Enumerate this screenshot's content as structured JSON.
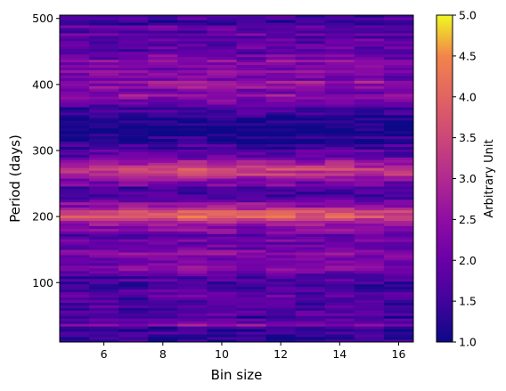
{
  "chart_data": {
    "type": "heatmap",
    "title": "",
    "xlabel": "Bin size",
    "ylabel": "Period (days)",
    "x": [
      5,
      6,
      7,
      8,
      9,
      10,
      11,
      12,
      13,
      14,
      15,
      16
    ],
    "xlim": [
      4.5,
      16.5
    ],
    "ylim": [
      10,
      505
    ],
    "xticks": [
      6,
      8,
      10,
      12,
      14,
      16
    ],
    "yticks": [
      100,
      200,
      300,
      400,
      500
    ],
    "colormap": "plasma",
    "colorbar": {
      "label": "Arbitrary Unit",
      "range": [
        1.0,
        5.0
      ],
      "ticks": [
        "1.0",
        "1.5",
        "2.0",
        "2.5",
        "3.0",
        "3.5",
        "4.0",
        "4.5",
        "5.0"
      ],
      "tick_values": [
        1.0,
        1.5,
        2.0,
        2.5,
        3.0,
        3.5,
        4.0,
        4.5,
        5.0
      ]
    },
    "period_profile": [
      [
        10,
        1.3
      ],
      [
        40,
        1.5
      ],
      [
        60,
        1.4
      ],
      [
        80,
        1.6
      ],
      [
        100,
        1.5
      ],
      [
        115,
        1.9
      ],
      [
        125,
        2.0
      ],
      [
        135,
        2.1
      ],
      [
        150,
        1.8
      ],
      [
        165,
        1.7
      ],
      [
        180,
        2.0
      ],
      [
        190,
        2.5
      ],
      [
        200,
        3.6
      ],
      [
        205,
        3.4
      ],
      [
        215,
        2.4
      ],
      [
        230,
        1.6
      ],
      [
        245,
        1.7
      ],
      [
        255,
        2.4
      ],
      [
        262,
        2.8
      ],
      [
        272,
        3.1
      ],
      [
        280,
        2.6
      ],
      [
        292,
        2.0
      ],
      [
        305,
        1.5
      ],
      [
        320,
        1.2
      ],
      [
        345,
        1.1
      ],
      [
        360,
        1.3
      ],
      [
        380,
        2.0
      ],
      [
        400,
        2.4
      ],
      [
        420,
        2.0
      ],
      [
        440,
        2.0
      ],
      [
        460,
        1.7
      ],
      [
        480,
        1.6
      ],
      [
        500,
        1.5
      ]
    ],
    "bin_profile": [
      0.95,
      1.0,
      1.07,
      1.1,
      1.15,
      1.12,
      1.06,
      1.1,
      1.05,
      1.08,
      1.0,
      0.97
    ]
  }
}
